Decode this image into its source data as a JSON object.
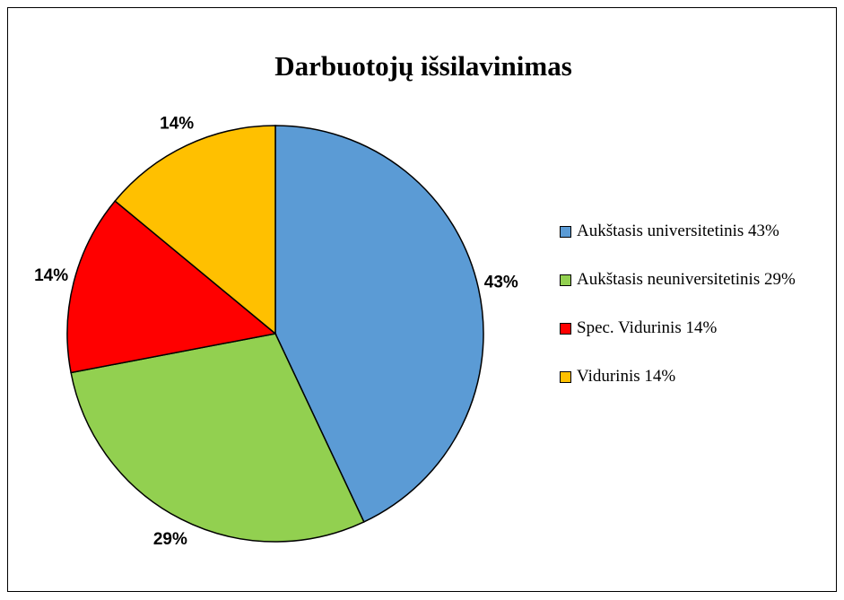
{
  "chart_data": {
    "type": "pie",
    "title": "Darbuotojų išsilavinimas",
    "categories": [
      "Aukštasis universitetinis 43%",
      "Aukštasis neuniversitetinis 29%",
      "Spec. Vidurinis 14%",
      "Vidurinis 14%"
    ],
    "values": [
      43,
      29,
      14,
      14
    ],
    "value_labels": [
      "43%",
      "29%",
      "14%",
      "14%"
    ],
    "colors": [
      "#5b9bd5",
      "#92d050",
      "#ff0000",
      "#ffc000"
    ],
    "legend": "right"
  }
}
